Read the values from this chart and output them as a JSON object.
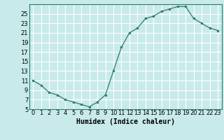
{
  "x": [
    0,
    1,
    2,
    3,
    4,
    5,
    6,
    7,
    8,
    9,
    10,
    11,
    12,
    13,
    14,
    15,
    16,
    17,
    18,
    19,
    20,
    21,
    22,
    23
  ],
  "y": [
    11,
    10,
    8.5,
    8,
    7,
    6.5,
    6,
    5.5,
    6.5,
    8,
    13,
    18,
    21,
    22,
    24,
    24.5,
    25.5,
    26,
    26.5,
    26.5,
    24,
    23,
    22,
    21.5
  ],
  "line_color": "#2d7a6e",
  "marker": "o",
  "marker_size": 2,
  "bg_color": "#c8eaea",
  "grid_color": "#ffffff",
  "xlabel": "Humidex (Indice chaleur)",
  "xlabel_fontsize": 7,
  "tick_fontsize": 6,
  "ylim": [
    5,
    27
  ],
  "xlim": [
    -0.5,
    23.5
  ],
  "yticks": [
    5,
    7,
    9,
    11,
    13,
    15,
    17,
    19,
    21,
    23,
    25
  ],
  "xticks": [
    0,
    1,
    2,
    3,
    4,
    5,
    6,
    7,
    8,
    9,
    10,
    11,
    12,
    13,
    14,
    15,
    16,
    17,
    18,
    19,
    20,
    21,
    22,
    23
  ],
  "xtick_labels": [
    "0",
    "1",
    "2",
    "3",
    "4",
    "5",
    "6",
    "7",
    "8",
    "9",
    "10",
    "11",
    "12",
    "13",
    "14",
    "15",
    "16",
    "17",
    "18",
    "19",
    "20",
    "21",
    "22",
    "23"
  ]
}
